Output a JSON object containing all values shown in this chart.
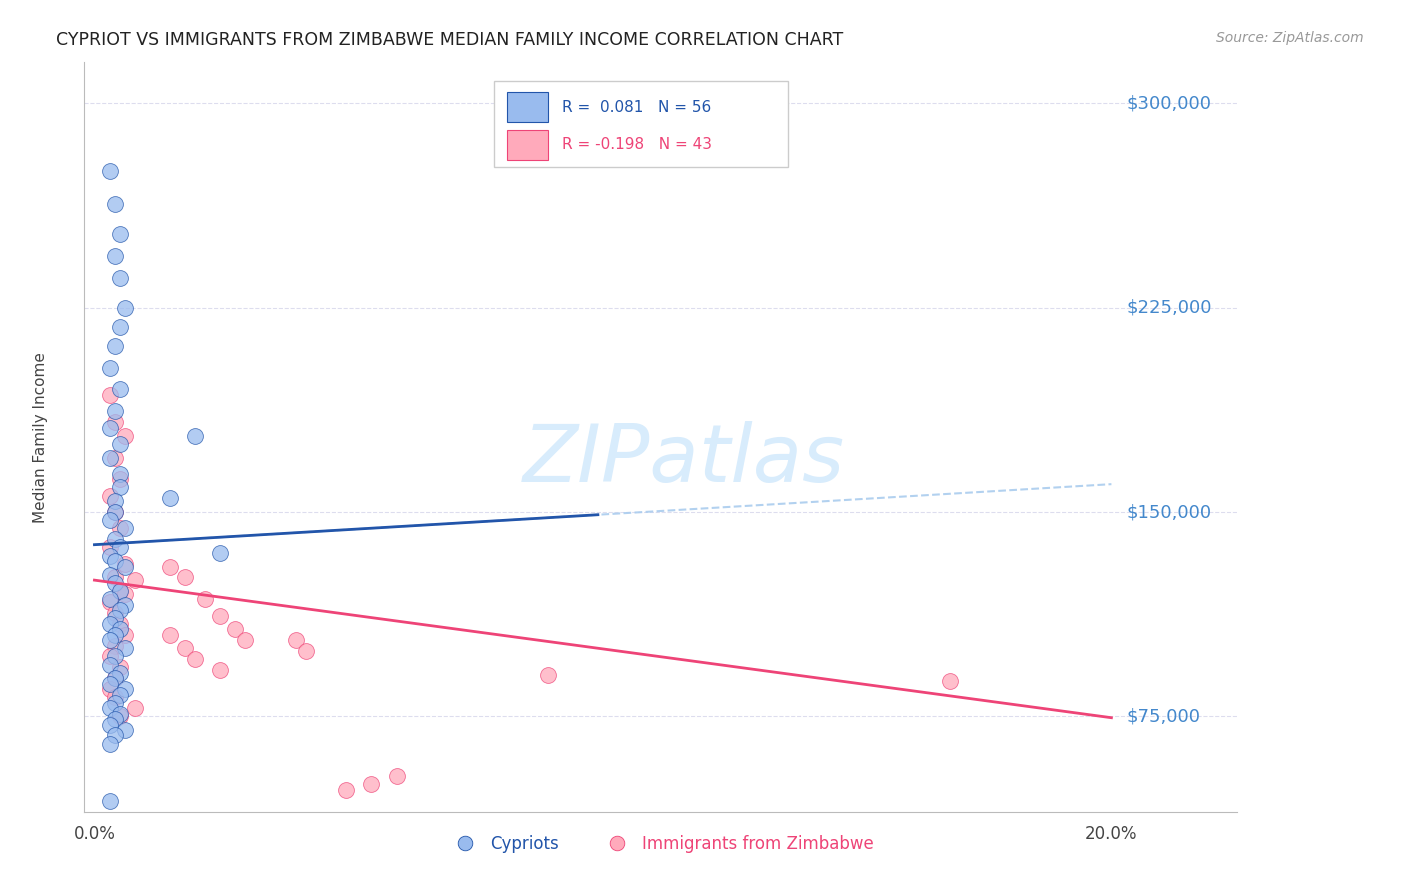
{
  "title": "CYPRIOT VS IMMIGRANTS FROM ZIMBABWE MEDIAN FAMILY INCOME CORRELATION CHART",
  "source": "Source: ZipAtlas.com",
  "ylabel": "Median Family Income",
  "ytick_labels": [
    "$75,000",
    "$150,000",
    "$225,000",
    "$300,000"
  ],
  "ytick_values": [
    75000,
    150000,
    225000,
    300000
  ],
  "ymin": 40000,
  "ymax": 315000,
  "xmin": 0.0,
  "xmax": 0.202,
  "legend_blue_r": "R =  0.081",
  "legend_blue_n": "N = 56",
  "legend_pink_r": "R = -0.198",
  "legend_pink_n": "N = 43",
  "blue_scatter_color": "#99BBEE",
  "pink_scatter_color": "#FFAABB",
  "blue_line_color": "#2255AA",
  "pink_line_color": "#EE4477",
  "dashed_line_color": "#AACCEE",
  "grid_color": "#DDDDEE",
  "background_color": "#FFFFFF",
  "title_color": "#222222",
  "right_label_color": "#4488CC",
  "watermark_color": "#D8ECFC",
  "blue_scatter_x": [
    0.003,
    0.004,
    0.005,
    0.004,
    0.005,
    0.006,
    0.005,
    0.004,
    0.003,
    0.005,
    0.004,
    0.003,
    0.005,
    0.003,
    0.005,
    0.005,
    0.004,
    0.004,
    0.003,
    0.006,
    0.004,
    0.005,
    0.003,
    0.004,
    0.006,
    0.003,
    0.004,
    0.005,
    0.003,
    0.006,
    0.005,
    0.004,
    0.003,
    0.005,
    0.004,
    0.003,
    0.006,
    0.004,
    0.003,
    0.005,
    0.004,
    0.003,
    0.006,
    0.005,
    0.004,
    0.003,
    0.005,
    0.004,
    0.003,
    0.006,
    0.004,
    0.003,
    0.015,
    0.02,
    0.003,
    0.025
  ],
  "blue_scatter_y": [
    275000,
    263000,
    252000,
    244000,
    236000,
    225000,
    218000,
    211000,
    203000,
    195000,
    187000,
    181000,
    175000,
    170000,
    164000,
    159000,
    154000,
    150000,
    147000,
    144000,
    140000,
    137000,
    134000,
    132000,
    130000,
    127000,
    124000,
    121000,
    118000,
    116000,
    114000,
    111000,
    109000,
    107000,
    105000,
    103000,
    100000,
    97000,
    94000,
    91000,
    89000,
    87000,
    85000,
    83000,
    80000,
    78000,
    76000,
    74000,
    72000,
    70000,
    68000,
    65000,
    155000,
    178000,
    44000,
    135000
  ],
  "pink_scatter_x": [
    0.003,
    0.004,
    0.006,
    0.004,
    0.005,
    0.003,
    0.004,
    0.005,
    0.003,
    0.006,
    0.004,
    0.005,
    0.003,
    0.004,
    0.005,
    0.006,
    0.004,
    0.003,
    0.005,
    0.004,
    0.008,
    0.006,
    0.003,
    0.004,
    0.008,
    0.005,
    0.015,
    0.018,
    0.022,
    0.025,
    0.028,
    0.03,
    0.015,
    0.018,
    0.02,
    0.025,
    0.04,
    0.042,
    0.05,
    0.055,
    0.06,
    0.09,
    0.17
  ],
  "pink_scatter_y": [
    193000,
    183000,
    178000,
    170000,
    162000,
    156000,
    150000,
    144000,
    137000,
    131000,
    126000,
    121000,
    117000,
    113000,
    109000,
    105000,
    101000,
    97000,
    93000,
    89000,
    125000,
    120000,
    85000,
    82000,
    78000,
    75000,
    130000,
    126000,
    118000,
    112000,
    107000,
    103000,
    105000,
    100000,
    96000,
    92000,
    103000,
    99000,
    48000,
    50000,
    53000,
    90000,
    88000
  ]
}
